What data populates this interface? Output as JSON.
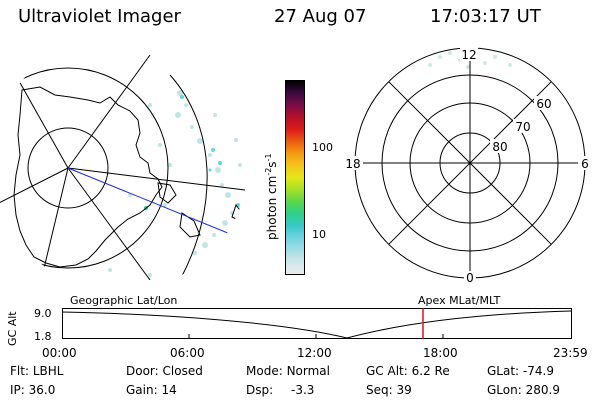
{
  "header": {
    "title": "Ultraviolet Imager",
    "date": "27 Aug 07",
    "time": "17:03:17 UT"
  },
  "colorbar": {
    "unit_label": "photon cm",
    "unit_exp1": "-2",
    "unit_mid": "s",
    "unit_exp2": "-1",
    "tick_100": "100",
    "tick_10": "10",
    "colors": [
      "#eaeaea",
      "#cfe6ea",
      "#a4dde6",
      "#6fd3e0",
      "#39c8c8",
      "#2fd08a",
      "#5ad64a",
      "#a6e02a",
      "#e4e619",
      "#f4c41a",
      "#f49a12",
      "#ec5a12",
      "#dc1a1a",
      "#b4102a",
      "#7a0c46",
      "#3a0a40",
      "#000000"
    ]
  },
  "polar": {
    "labels": [
      "12",
      "18",
      "6",
      "0",
      "60",
      "70",
      "80"
    ]
  },
  "strip": {
    "left_title": "Geographic Lat/Lon",
    "right_title": "Apex  MLat/MLT",
    "y_label": "GC Alt",
    "y_top": "9.0",
    "y_bottom": "1.8",
    "x_ticks": [
      "00:00",
      "06:00",
      "12:00",
      "18:00",
      "23:59"
    ],
    "marker_color": "#e01010"
  },
  "info": {
    "flt_label": "Flt:",
    "flt_value": "LBHL",
    "ip_label": "IP:",
    "ip_value": "36.0",
    "door_label": "Door:",
    "door_value": "Closed",
    "gain_label": "Gain:",
    "gain_value": "14",
    "mode_label": "Mode:",
    "mode_value": "Normal",
    "dsp_label": "Dsp:",
    "dsp_value": "-3.3",
    "gcalt_label": "GC Alt:",
    "gcalt_value": "6.2 Re",
    "seq_label": "Seq:",
    "seq_value": "39",
    "glat_label": "GLat:",
    "glat_value": "-74.9",
    "glon_label": "GLon:",
    "glon_value": "280.9"
  }
}
